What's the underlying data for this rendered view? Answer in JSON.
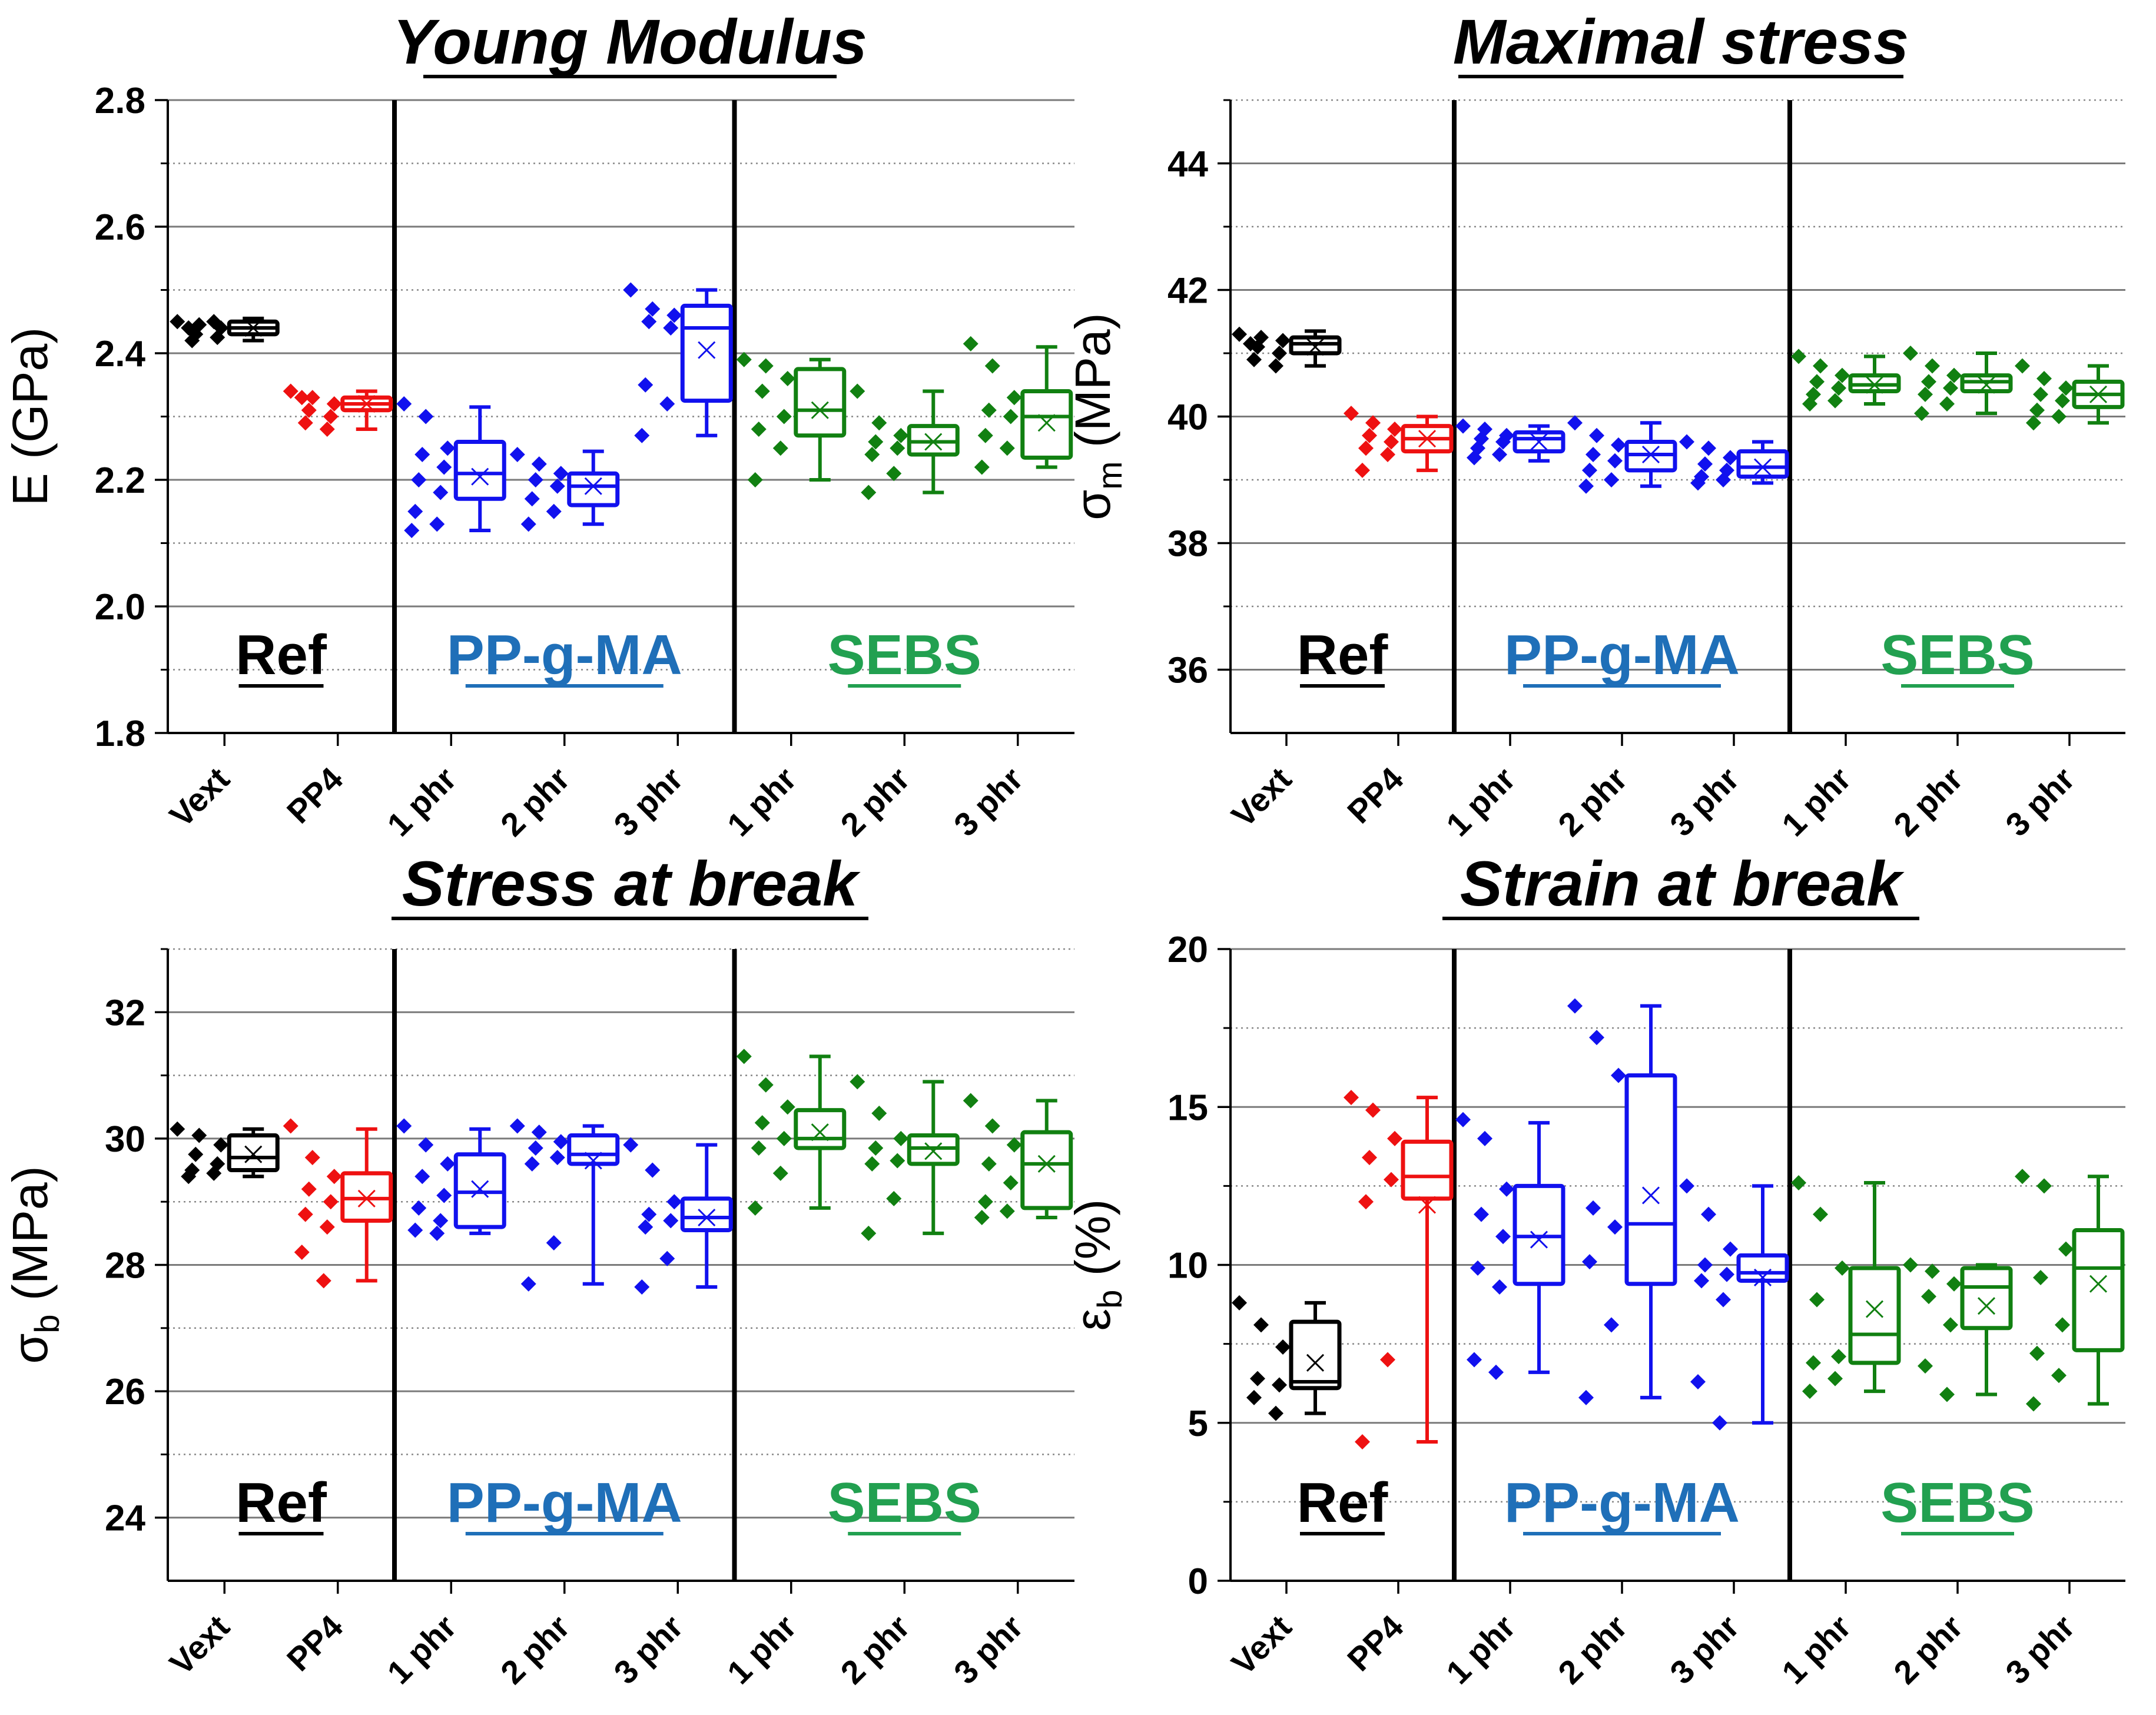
{
  "colors": {
    "Ref": "#000000",
    "PP4": "#ee1111",
    "PP-g-MA": "#1111ee",
    "SEBS": "#118011",
    "label_Ref": "#000000",
    "label_PP-g-MA": "#1f6fb8",
    "label_SEBS": "#22a050"
  },
  "chart_data": [
    {
      "type": "box",
      "title": "Young Modulus",
      "ylabel": "E (GPa)",
      "ylabel_main": "E (GPa)",
      "ylabel_sub": "",
      "ylabel_rest": "",
      "ylim": [
        1.8,
        2.8
      ],
      "major_ticks": [
        1.8,
        2.0,
        2.2,
        2.4,
        2.6,
        2.8
      ],
      "tick_labels": [
        "1.8",
        "2.0",
        "2.2",
        "2.4",
        "2.6",
        "2.8"
      ],
      "minor_ticks": [
        1.9,
        2.1,
        2.3,
        2.5,
        2.7
      ],
      "categories": [
        "Vext",
        "PP4",
        "1 phr",
        "2 phr",
        "3 phr",
        "1 phr",
        "2 phr",
        "3 phr"
      ],
      "groups": [
        {
          "label": "Ref",
          "from": 0,
          "to": 1
        },
        {
          "label": "PP-g-MA",
          "from": 2,
          "to": 4
        },
        {
          "label": "SEBS",
          "from": 5,
          "to": 7
        }
      ],
      "boxes": [
        {
          "color": "Ref",
          "min": 2.42,
          "q1": 2.43,
          "median": 2.44,
          "q3": 2.45,
          "max": 2.455,
          "mean": 2.44,
          "points": [
            2.45,
            2.445,
            2.44,
            2.43,
            2.425,
            2.42,
            2.45,
            2.44
          ]
        },
        {
          "color": "PP4",
          "min": 2.28,
          "q1": 2.31,
          "median": 2.32,
          "q3": 2.33,
          "max": 2.34,
          "mean": 2.32,
          "points": [
            2.34,
            2.33,
            2.32,
            2.31,
            2.3,
            2.29,
            2.28,
            2.33
          ]
        },
        {
          "color": "PP-g-MA",
          "min": 2.12,
          "q1": 2.17,
          "median": 2.21,
          "q3": 2.26,
          "max": 2.315,
          "mean": 2.205,
          "points": [
            2.32,
            2.3,
            2.25,
            2.24,
            2.22,
            2.2,
            2.18,
            2.15,
            2.13,
            2.12
          ]
        },
        {
          "color": "PP-g-MA",
          "min": 2.13,
          "q1": 2.16,
          "median": 2.19,
          "q3": 2.21,
          "max": 2.245,
          "mean": 2.19,
          "points": [
            2.24,
            2.225,
            2.21,
            2.2,
            2.19,
            2.17,
            2.15,
            2.13
          ]
        },
        {
          "color": "PP-g-MA",
          "min": 2.27,
          "q1": 2.325,
          "median": 2.44,
          "q3": 2.475,
          "max": 2.5,
          "mean": 2.405,
          "points": [
            2.5,
            2.47,
            2.46,
            2.45,
            2.44,
            2.35,
            2.32,
            2.27
          ]
        },
        {
          "color": "SEBS",
          "min": 2.2,
          "q1": 2.27,
          "median": 2.31,
          "q3": 2.375,
          "max": 2.39,
          "mean": 2.31,
          "points": [
            2.39,
            2.38,
            2.36,
            2.34,
            2.3,
            2.28,
            2.25,
            2.2
          ]
        },
        {
          "color": "SEBS",
          "min": 2.18,
          "q1": 2.24,
          "median": 2.26,
          "q3": 2.285,
          "max": 2.34,
          "mean": 2.26,
          "points": [
            2.34,
            2.29,
            2.27,
            2.26,
            2.25,
            2.24,
            2.21,
            2.18
          ]
        },
        {
          "color": "SEBS",
          "min": 2.22,
          "q1": 2.235,
          "median": 2.3,
          "q3": 2.34,
          "max": 2.41,
          "mean": 2.29,
          "points": [
            2.415,
            2.38,
            2.33,
            2.31,
            2.3,
            2.27,
            2.25,
            2.22
          ]
        }
      ]
    },
    {
      "type": "box",
      "title": "Maximal stress",
      "ylabel": "σm (MPa)",
      "ylabel_main": "σ",
      "ylabel_sub": "m",
      "ylabel_rest": " (MPa)",
      "ylim": [
        35,
        45
      ],
      "major_ticks": [
        36,
        38,
        40,
        42,
        44
      ],
      "tick_labels": [
        "36",
        "38",
        "40",
        "42",
        "44"
      ],
      "minor_ticks": [
        37,
        39,
        41,
        43,
        45
      ],
      "categories": [
        "Vext",
        "PP4",
        "1 phr",
        "2 phr",
        "3 phr",
        "1 phr",
        "2 phr",
        "3 phr"
      ],
      "groups": [
        {
          "label": "Ref",
          "from": 0,
          "to": 1
        },
        {
          "label": "PP-g-MA",
          "from": 2,
          "to": 4
        },
        {
          "label": "SEBS",
          "from": 5,
          "to": 7
        }
      ],
      "boxes": [
        {
          "color": "Ref",
          "min": 40.8,
          "q1": 41.0,
          "median": 41.15,
          "q3": 41.25,
          "max": 41.35,
          "mean": 41.1,
          "points": [
            41.3,
            41.25,
            41.2,
            41.1,
            41.0,
            40.9,
            40.8,
            41.15
          ]
        },
        {
          "color": "PP4",
          "min": 39.15,
          "q1": 39.45,
          "median": 39.65,
          "q3": 39.85,
          "max": 40.0,
          "mean": 39.65,
          "points": [
            40.05,
            39.9,
            39.8,
            39.7,
            39.6,
            39.5,
            39.4,
            39.15
          ]
        },
        {
          "color": "PP-g-MA",
          "min": 39.3,
          "q1": 39.45,
          "median": 39.65,
          "q3": 39.75,
          "max": 39.85,
          "mean": 39.6,
          "points": [
            39.85,
            39.8,
            39.7,
            39.65,
            39.6,
            39.5,
            39.4,
            39.35
          ]
        },
        {
          "color": "PP-g-MA",
          "min": 38.9,
          "q1": 39.15,
          "median": 39.4,
          "q3": 39.6,
          "max": 39.9,
          "mean": 39.4,
          "points": [
            39.9,
            39.7,
            39.55,
            39.4,
            39.3,
            39.15,
            39.0,
            38.9
          ]
        },
        {
          "color": "PP-g-MA",
          "min": 38.95,
          "q1": 39.05,
          "median": 39.2,
          "q3": 39.45,
          "max": 39.6,
          "mean": 39.2,
          "points": [
            39.6,
            39.5,
            39.35,
            39.25,
            39.15,
            39.05,
            39.0,
            38.95
          ]
        },
        {
          "color": "SEBS",
          "min": 40.2,
          "q1": 40.4,
          "median": 40.5,
          "q3": 40.65,
          "max": 40.95,
          "mean": 40.5,
          "points": [
            40.95,
            40.8,
            40.65,
            40.55,
            40.45,
            40.35,
            40.25,
            40.2
          ]
        },
        {
          "color": "SEBS",
          "min": 40.05,
          "q1": 40.4,
          "median": 40.55,
          "q3": 40.65,
          "max": 41.0,
          "mean": 40.5,
          "points": [
            41.0,
            40.8,
            40.65,
            40.55,
            40.45,
            40.35,
            40.2,
            40.05
          ]
        },
        {
          "color": "SEBS",
          "min": 39.9,
          "q1": 40.15,
          "median": 40.35,
          "q3": 40.55,
          "max": 40.8,
          "mean": 40.35,
          "points": [
            40.8,
            40.6,
            40.45,
            40.35,
            40.25,
            40.1,
            40.0,
            39.9
          ]
        }
      ]
    },
    {
      "type": "box",
      "title": "Stress at break",
      "ylabel": "σb (MPa)",
      "ylabel_main": "σ",
      "ylabel_sub": "b",
      "ylabel_rest": " (MPa)",
      "ylim": [
        23,
        33
      ],
      "major_ticks": [
        24,
        26,
        28,
        30,
        32
      ],
      "tick_labels": [
        "24",
        "26",
        "28",
        "30",
        "32"
      ],
      "minor_ticks": [
        25,
        27,
        29,
        31,
        33
      ],
      "categories": [
        "Vext",
        "PP4",
        "1 phr",
        "2 phr",
        "3 phr",
        "1 phr",
        "2 phr",
        "3 phr"
      ],
      "groups": [
        {
          "label": "Ref",
          "from": 0,
          "to": 1
        },
        {
          "label": "PP-g-MA",
          "from": 2,
          "to": 4
        },
        {
          "label": "SEBS",
          "from": 5,
          "to": 7
        }
      ],
      "boxes": [
        {
          "color": "Ref",
          "min": 29.4,
          "q1": 29.5,
          "median": 29.7,
          "q3": 30.05,
          "max": 30.15,
          "mean": 29.75,
          "points": [
            30.15,
            30.05,
            29.9,
            29.75,
            29.6,
            29.5,
            29.45,
            29.4
          ]
        },
        {
          "color": "PP4",
          "min": 27.75,
          "q1": 28.7,
          "median": 29.05,
          "q3": 29.45,
          "max": 30.15,
          "mean": 29.05,
          "points": [
            30.2,
            29.7,
            29.4,
            29.2,
            29.0,
            28.8,
            28.6,
            28.2,
            27.75
          ]
        },
        {
          "color": "PP-g-MA",
          "min": 28.5,
          "q1": 28.6,
          "median": 29.15,
          "q3": 29.75,
          "max": 30.15,
          "mean": 29.2,
          "points": [
            30.2,
            29.9,
            29.6,
            29.4,
            29.1,
            28.9,
            28.7,
            28.55,
            28.5
          ]
        },
        {
          "color": "PP-g-MA",
          "min": 27.7,
          "q1": 29.6,
          "median": 29.75,
          "q3": 30.05,
          "max": 30.2,
          "mean": 29.65,
          "points": [
            30.2,
            30.1,
            29.95,
            29.85,
            29.7,
            29.6,
            28.35,
            27.7
          ]
        },
        {
          "color": "PP-g-MA",
          "min": 27.65,
          "q1": 28.55,
          "median": 28.75,
          "q3": 29.05,
          "max": 29.9,
          "mean": 28.75,
          "points": [
            29.9,
            29.5,
            29.0,
            28.8,
            28.7,
            28.6,
            28.1,
            27.65
          ]
        },
        {
          "color": "SEBS",
          "min": 28.9,
          "q1": 29.85,
          "median": 30.0,
          "q3": 30.45,
          "max": 31.3,
          "mean": 30.1,
          "points": [
            31.3,
            30.85,
            30.5,
            30.25,
            30.0,
            29.85,
            29.45,
            28.9
          ]
        },
        {
          "color": "SEBS",
          "min": 28.5,
          "q1": 29.6,
          "median": 29.85,
          "q3": 30.05,
          "max": 30.9,
          "mean": 29.8,
          "points": [
            30.9,
            30.4,
            30.0,
            29.85,
            29.65,
            29.6,
            29.05,
            28.5
          ]
        },
        {
          "color": "SEBS",
          "min": 28.75,
          "q1": 28.9,
          "median": 29.6,
          "q3": 30.1,
          "max": 30.6,
          "mean": 29.6,
          "points": [
            30.6,
            30.2,
            29.9,
            29.6,
            29.3,
            29.0,
            28.85,
            28.75
          ]
        }
      ]
    },
    {
      "type": "box",
      "title": "Strain at break",
      "ylabel": "εb (%)",
      "ylabel_main": "ε",
      "ylabel_sub": "b",
      "ylabel_rest": " (%)",
      "ylim": [
        0,
        20
      ],
      "major_ticks": [
        0,
        5,
        10,
        15,
        20
      ],
      "tick_labels": [
        "0",
        "5",
        "10",
        "15",
        "20"
      ],
      "minor_ticks": [
        2.5,
        7.5,
        12.5,
        17.5
      ],
      "categories": [
        "Vext",
        "PP4",
        "1 phr",
        "2 phr",
        "3 phr",
        "1 phr",
        "2 phr",
        "3 phr"
      ],
      "groups": [
        {
          "label": "Ref",
          "from": 0,
          "to": 1
        },
        {
          "label": "PP-g-MA",
          "from": 2,
          "to": 4
        },
        {
          "label": "SEBS",
          "from": 5,
          "to": 7
        }
      ],
      "boxes": [
        {
          "color": "Ref",
          "min": 5.3,
          "q1": 6.1,
          "median": 6.3,
          "q3": 8.2,
          "max": 8.8,
          "mean": 6.9,
          "points": [
            8.8,
            8.1,
            7.4,
            6.4,
            6.2,
            5.8,
            5.3
          ]
        },
        {
          "color": "PP4",
          "min": 4.4,
          "q1": 12.1,
          "median": 12.8,
          "q3": 13.9,
          "max": 15.3,
          "mean": 11.9,
          "points": [
            15.3,
            14.9,
            14.0,
            13.4,
            12.7,
            12.0,
            7.0,
            4.4
          ]
        },
        {
          "color": "PP-g-MA",
          "min": 6.6,
          "q1": 9.4,
          "median": 10.9,
          "q3": 12.5,
          "max": 14.5,
          "mean": 10.8,
          "points": [
            14.6,
            14.0,
            12.4,
            11.6,
            10.9,
            9.9,
            9.3,
            7.0,
            6.6
          ]
        },
        {
          "color": "PP-g-MA",
          "min": 5.8,
          "q1": 9.4,
          "median": 11.3,
          "q3": 16.0,
          "max": 18.2,
          "mean": 12.2,
          "points": [
            18.2,
            17.2,
            16.0,
            11.8,
            11.2,
            10.1,
            8.1,
            5.8
          ]
        },
        {
          "color": "PP-g-MA",
          "min": 5.0,
          "q1": 9.5,
          "median": 9.75,
          "q3": 10.3,
          "max": 12.5,
          "mean": 9.6,
          "points": [
            12.5,
            11.6,
            10.5,
            10.0,
            9.7,
            9.5,
            8.9,
            6.3,
            5.0
          ]
        },
        {
          "color": "SEBS",
          "min": 6.0,
          "q1": 6.9,
          "median": 7.8,
          "q3": 9.9,
          "max": 12.6,
          "mean": 8.6,
          "points": [
            12.6,
            11.6,
            9.9,
            8.9,
            7.1,
            6.9,
            6.4,
            6.0
          ]
        },
        {
          "color": "SEBS",
          "min": 5.9,
          "q1": 8.0,
          "median": 9.3,
          "q3": 9.9,
          "max": 10.0,
          "mean": 8.7,
          "points": [
            10.0,
            9.8,
            9.4,
            9.0,
            8.1,
            6.8,
            5.9
          ]
        },
        {
          "color": "SEBS",
          "min": 5.6,
          "q1": 7.3,
          "median": 9.9,
          "q3": 11.1,
          "max": 12.8,
          "mean": 9.4,
          "points": [
            12.8,
            12.5,
            10.5,
            9.6,
            8.1,
            7.2,
            6.5,
            5.6
          ]
        }
      ]
    }
  ]
}
